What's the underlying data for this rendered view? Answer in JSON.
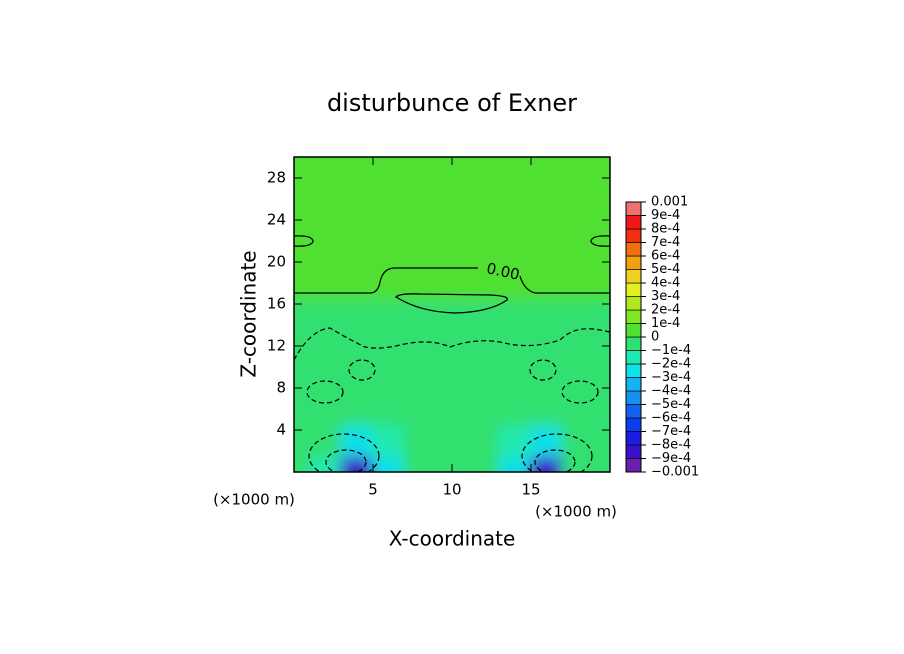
{
  "chart_data": {
    "type": "contour",
    "title": "disturbunce of Exner",
    "x_label": "X-coordinate",
    "y_label": "Z-coordinate",
    "x_unit_labels": [
      "(×1000 m)",
      "(×1000 m)"
    ],
    "contour_label": "0.00",
    "xlim": [
      0,
      20
    ],
    "xticks": [
      5,
      10,
      15
    ],
    "ylim": [
      0,
      30
    ],
    "yticks": [
      4,
      8,
      12,
      16,
      20,
      24,
      28
    ],
    "levels": [
      {
        "value": -0.001,
        "label": "−0.001"
      },
      {
        "value": -0.0009,
        "label": "−9e-4"
      },
      {
        "value": -0.0008,
        "label": "−8e-4"
      },
      {
        "value": -0.0007,
        "label": "−7e-4"
      },
      {
        "value": -0.0006,
        "label": "−6e-4"
      },
      {
        "value": -0.0005,
        "label": "−5e-4"
      },
      {
        "value": -0.0004,
        "label": "−4e-4"
      },
      {
        "value": -0.0003,
        "label": "−3e-4"
      },
      {
        "value": -0.0002,
        "label": "−2e-4"
      },
      {
        "value": -0.0001,
        "label": "−1e-4"
      },
      0,
      {
        "value": 0.0001,
        "label": "1e-4"
      },
      {
        "value": 0.0002,
        "label": "2e-4"
      },
      {
        "value": 0.0003,
        "label": "3e-4"
      },
      {
        "value": 0.0004,
        "label": "4e-4"
      },
      {
        "value": 0.0005,
        "label": "5e-4"
      },
      {
        "value": 0.0006,
        "label": "6e-4"
      },
      {
        "value": 0.0007,
        "label": "7e-4"
      },
      {
        "value": 0.0008,
        "label": "8e-4"
      },
      {
        "value": 0.0009,
        "label": "9e-4"
      },
      0.001
    ],
    "colors": [
      "#6a1fb0",
      "#3a10c8",
      "#1a1ee0",
      "#0a3cf0",
      "#1460f0",
      "#1890f0",
      "#14b4f0",
      "#10e0e8",
      "#20e8b0",
      "#30e070",
      "#50e030",
      "#80e820",
      "#b0e820",
      "#e0f020",
      "#f0d020",
      "#f0a010",
      "#f07010",
      "#f03010",
      "#f01818",
      "#f07070"
    ],
    "field": {
      "x": [
        0,
        2,
        4,
        6,
        8,
        10,
        12,
        14,
        16,
        18,
        20
      ],
      "z": [
        0,
        3,
        6,
        9,
        12,
        15,
        18,
        21,
        24,
        27,
        30
      ],
      "values": [
        [
          -8e-05,
          -0.0002,
          -0.0009,
          -0.0003,
          -0.0001,
          -8e-05,
          -0.0001,
          -0.0003,
          -0.0009,
          -0.0002,
          -8e-05
        ],
        [
          -6e-05,
          -0.0001,
          -0.0003,
          -0.00015,
          -8e-05,
          -6e-05,
          -8e-05,
          -0.00015,
          -0.0003,
          -0.0001,
          -6e-05
        ],
        [
          -5e-05,
          -7e-05,
          -8e-05,
          -7e-05,
          -6e-05,
          -5e-05,
          -6e-05,
          -7e-05,
          -8e-05,
          -7e-05,
          -5e-05
        ],
        [
          -4e-05,
          -6e-05,
          -7e-05,
          -6e-05,
          -5e-05,
          -5e-05,
          -5e-05,
          -6e-05,
          -7e-05,
          -6e-05,
          -4e-05
        ],
        [
          -3e-05,
          -3e-05,
          -3e-05,
          -3e-05,
          -3e-05,
          -3e-05,
          -3e-05,
          -3e-05,
          -3e-05,
          -3e-05,
          -3e-05
        ],
        [
          -1e-05,
          -1e-05,
          -1e-05,
          -1e-05,
          -1e-05,
          -1e-05,
          -1e-05,
          -1e-05,
          -1e-05,
          -1e-05,
          -1e-05
        ],
        [
          2e-05,
          2e-05,
          2e-05,
          2e-05,
          2e-05,
          2e-05,
          2e-05,
          2e-05,
          2e-05,
          2e-05,
          2e-05
        ],
        [
          3e-05,
          3e-05,
          3e-05,
          3e-05,
          3e-05,
          3e-05,
          3e-05,
          3e-05,
          3e-05,
          3e-05,
          3e-05
        ],
        [
          3e-05,
          3e-05,
          3e-05,
          3e-05,
          4e-05,
          4e-05,
          4e-05,
          3e-05,
          3e-05,
          3e-05,
          3e-05
        ],
        [
          3e-05,
          3e-05,
          3e-05,
          3e-05,
          3e-05,
          3e-05,
          3e-05,
          3e-05,
          3e-05,
          3e-05,
          3e-05
        ],
        [
          3e-05,
          3e-05,
          3e-05,
          3e-05,
          3e-05,
          3e-05,
          3e-05,
          3e-05,
          3e-05,
          3e-05,
          3e-05
        ]
      ]
    }
  }
}
